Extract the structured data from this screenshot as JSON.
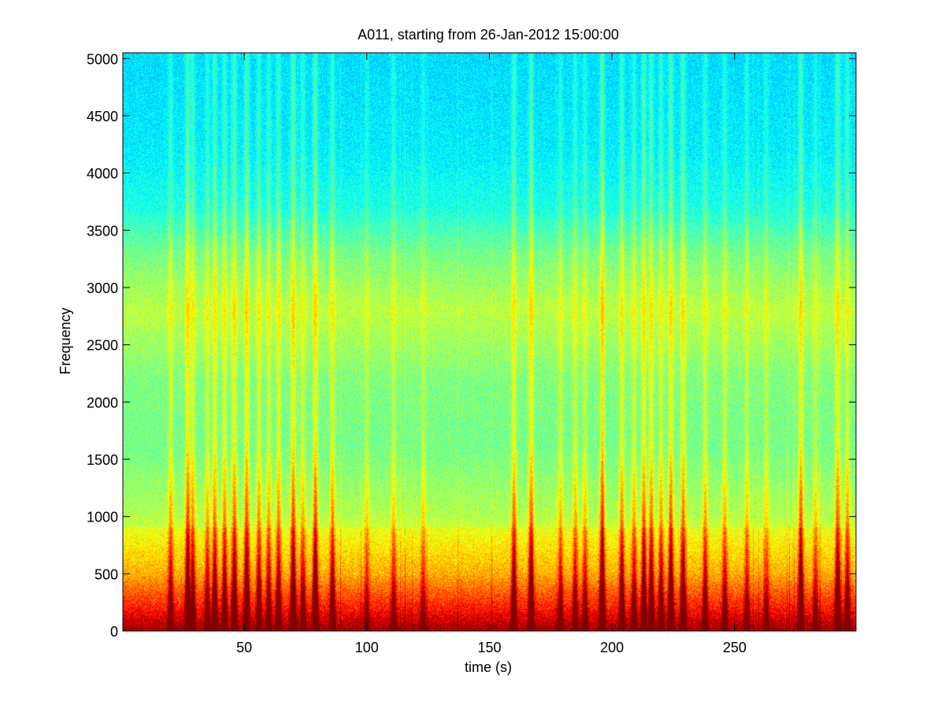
{
  "chart_data": {
    "type": "heatmap",
    "title": "A011, starting from 26-Jan-2012 15:00:00",
    "xlabel": "time (s)",
    "ylabel": "Frequency",
    "xlim": [
      0.5,
      299.5
    ],
    "ylim": [
      0,
      5050
    ],
    "x_ticks": [
      50,
      100,
      150,
      200,
      250
    ],
    "y_ticks": [
      0,
      500,
      1000,
      1500,
      2000,
      2500,
      3000,
      3500,
      4000,
      4500,
      5000
    ],
    "colormap": "jet",
    "colors": {
      "low": "#1de8d8",
      "mid": "#8ef25a",
      "high": "#f6f41e",
      "peak": "#e8201a"
    },
    "grid": false,
    "legend": "none",
    "background_level_by_frequency": [
      {
        "frequency": 0,
        "level": 0.92
      },
      {
        "frequency": 200,
        "level": 0.8
      },
      {
        "frequency": 500,
        "level": 0.66
      },
      {
        "frequency": 1000,
        "level": 0.55
      },
      {
        "frequency": 1600,
        "level": 0.49
      },
      {
        "frequency": 2200,
        "level": 0.5
      },
      {
        "frequency": 2800,
        "level": 0.56
      },
      {
        "frequency": 3300,
        "level": 0.49
      },
      {
        "frequency": 3700,
        "level": 0.4
      },
      {
        "frequency": 4200,
        "level": 0.36
      },
      {
        "frequency": 5050,
        "level": 0.34
      }
    ],
    "broadband_events": [
      {
        "time": 20,
        "intensity": 0.6
      },
      {
        "time": 27,
        "intensity": 0.95
      },
      {
        "time": 29,
        "intensity": 0.7
      },
      {
        "time": 35,
        "intensity": 0.55
      },
      {
        "time": 38,
        "intensity": 0.75
      },
      {
        "time": 42,
        "intensity": 0.7
      },
      {
        "time": 46,
        "intensity": 0.85
      },
      {
        "time": 51,
        "intensity": 0.9
      },
      {
        "time": 56,
        "intensity": 0.65
      },
      {
        "time": 60,
        "intensity": 0.6
      },
      {
        "time": 64,
        "intensity": 0.7
      },
      {
        "time": 70,
        "intensity": 0.95
      },
      {
        "time": 74,
        "intensity": 0.55
      },
      {
        "time": 79,
        "intensity": 0.95
      },
      {
        "time": 86,
        "intensity": 0.7
      },
      {
        "time": 100,
        "intensity": 0.4
      },
      {
        "time": 111,
        "intensity": 0.45
      },
      {
        "time": 123,
        "intensity": 0.4
      },
      {
        "time": 160,
        "intensity": 0.8
      },
      {
        "time": 167,
        "intensity": 0.85
      },
      {
        "time": 179,
        "intensity": 0.5
      },
      {
        "time": 185,
        "intensity": 0.55
      },
      {
        "time": 189,
        "intensity": 0.5
      },
      {
        "time": 196,
        "intensity": 0.98
      },
      {
        "time": 204,
        "intensity": 0.75
      },
      {
        "time": 209,
        "intensity": 0.6
      },
      {
        "time": 213,
        "intensity": 0.85
      },
      {
        "time": 216,
        "intensity": 0.8
      },
      {
        "time": 220,
        "intensity": 0.65
      },
      {
        "time": 224,
        "intensity": 0.9
      },
      {
        "time": 229,
        "intensity": 0.8
      },
      {
        "time": 238,
        "intensity": 0.6
      },
      {
        "time": 246,
        "intensity": 0.55
      },
      {
        "time": 255,
        "intensity": 0.45
      },
      {
        "time": 263,
        "intensity": 0.4
      },
      {
        "time": 277,
        "intensity": 0.9
      },
      {
        "time": 283,
        "intensity": 0.45
      },
      {
        "time": 292,
        "intensity": 0.85
      },
      {
        "time": 296,
        "intensity": 0.65
      }
    ]
  }
}
